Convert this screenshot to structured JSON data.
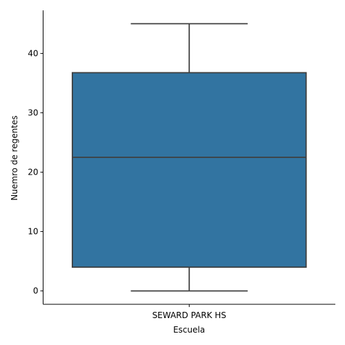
{
  "chart_data": {
    "type": "box",
    "categories": [
      "SEWARD PARK HS"
    ],
    "boxes": [
      {
        "category": "SEWARD PARK HS",
        "min": 0,
        "q1": 4,
        "median": 22.5,
        "q3": 36.75,
        "max": 45
      }
    ],
    "xlabel": "Escuela",
    "ylabel": "Nuemro de regentes",
    "yticks": [
      0,
      10,
      20,
      30,
      40
    ],
    "ylim": [
      -2.25,
      47.25
    ],
    "grid": false,
    "colors": {
      "box_fill": "#3274a1",
      "lines": "#3f3f3f",
      "axis": "#000000"
    }
  }
}
